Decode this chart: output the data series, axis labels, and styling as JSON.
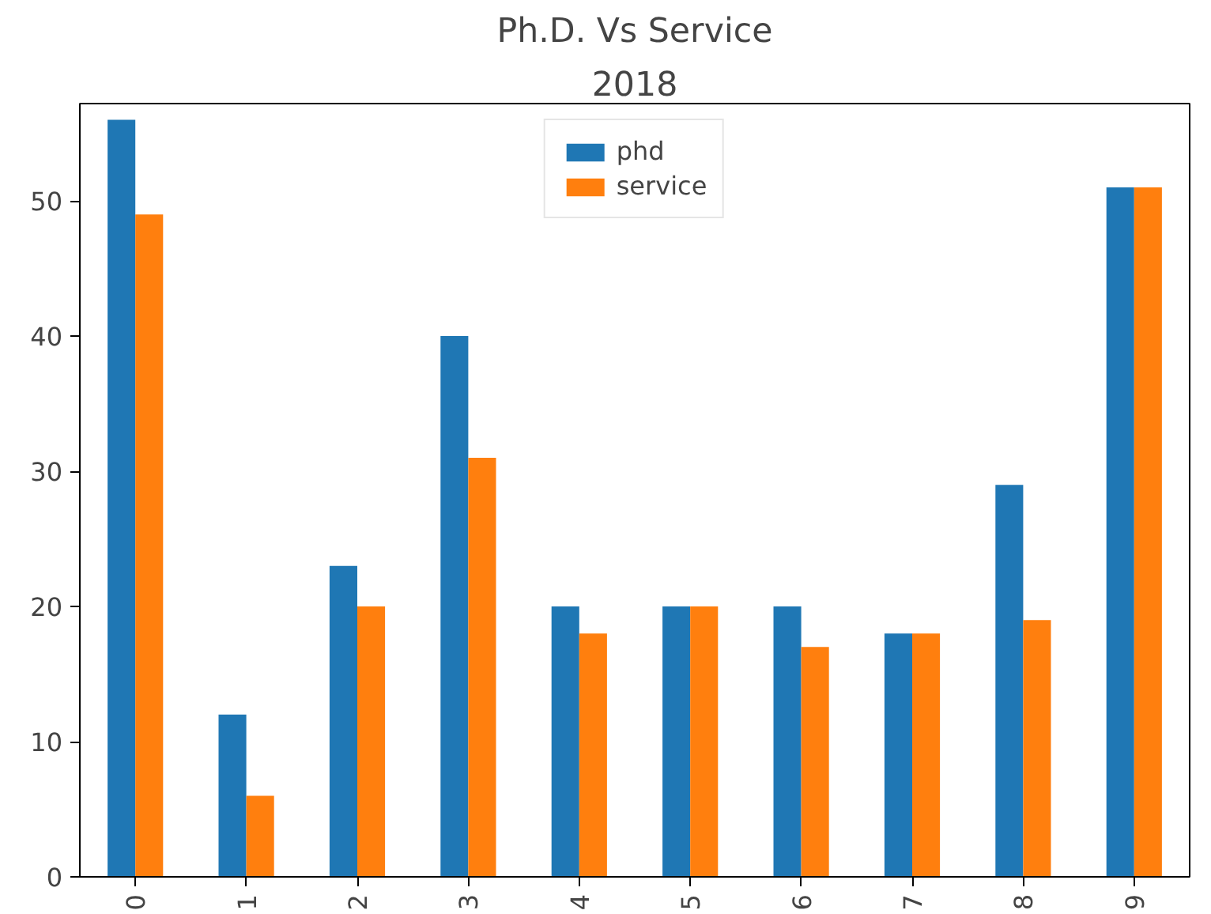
{
  "chart_data": {
    "type": "bar",
    "title": "Ph.D. Vs Service",
    "subtitle": "2018",
    "categories": [
      "0",
      "1",
      "2",
      "3",
      "4",
      "5",
      "6",
      "7",
      "8",
      "9"
    ],
    "series": [
      {
        "name": "phd",
        "color": "#1f77b4",
        "values": [
          56,
          12,
          23,
          40,
          20,
          20,
          20,
          18,
          29,
          51
        ]
      },
      {
        "name": "service",
        "color": "#ff7f0e",
        "values": [
          49,
          6,
          20,
          31,
          18,
          20,
          17,
          18,
          19,
          51
        ]
      }
    ],
    "ylim": [
      0,
      57.2
    ],
    "yticks": [
      0,
      10,
      20,
      30,
      40,
      50
    ],
    "grid": false,
    "legend": "top"
  }
}
